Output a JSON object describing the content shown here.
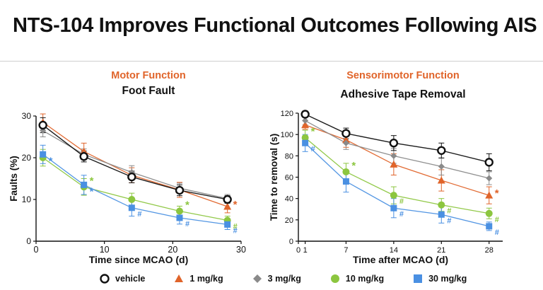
{
  "slide_title": "NTS-104 Improves Functional Outcomes Following AIS",
  "colors": {
    "vehicle": "#111111",
    "dose_1": "#e0642a",
    "dose_3": "#8a8a8a",
    "dose_10": "#8cc63f",
    "dose_30": "#4a90e2",
    "category": "#e0642a"
  },
  "legend": [
    {
      "key": "vehicle",
      "label": "vehicle",
      "marker": "open-circle-icon"
    },
    {
      "key": "dose_1",
      "label": "1 mg/kg",
      "marker": "triangle-icon"
    },
    {
      "key": "dose_3",
      "label": "3 mg/kg",
      "marker": "diamond-icon"
    },
    {
      "key": "dose_10",
      "label": "10 mg/kg",
      "marker": "circle-icon"
    },
    {
      "key": "dose_30",
      "label": "30 mg/kg",
      "marker": "square-icon"
    }
  ],
  "chart_data": [
    {
      "type": "line",
      "category": "Motor Function",
      "title": "Foot Fault",
      "xlabel": "Time since MCAO (d)",
      "ylabel": "Faults (%)",
      "xlim": [
        0,
        30
      ],
      "ylim": [
        0,
        30
      ],
      "xticks": [
        0,
        10,
        20,
        30
      ],
      "yticks": [
        0,
        10,
        20,
        30
      ],
      "x": [
        1,
        7,
        14,
        21,
        28
      ],
      "series": [
        {
          "key": "vehicle",
          "name": "vehicle",
          "marker": "open-circle",
          "values": [
            27.8,
            20.3,
            15.4,
            12.2,
            10.0
          ],
          "errors": [
            1.8,
            1.3,
            1.4,
            1.3,
            0.9
          ],
          "annotations": [
            "",
            "",
            "",
            "",
            ""
          ]
        },
        {
          "key": "dose_1",
          "name": "1 mg/kg",
          "marker": "triangle",
          "values": [
            28.5,
            21.5,
            15.8,
            12.3,
            8.3
          ],
          "errors": [
            2.0,
            2.0,
            1.8,
            1.8,
            1.5
          ],
          "annotations": [
            "",
            "",
            "",
            "",
            "*"
          ]
        },
        {
          "key": "dose_3",
          "name": "3 mg/kg",
          "marker": "diamond",
          "values": [
            26.5,
            20.8,
            16.5,
            12.7,
            10.2
          ],
          "errors": [
            1.5,
            1.3,
            1.6,
            1.2,
            1.0
          ],
          "annotations": [
            "",
            "",
            "",
            "",
            ""
          ]
        },
        {
          "key": "dose_10",
          "name": "10 mg/kg",
          "marker": "circle",
          "values": [
            20.0,
            13.0,
            10.0,
            7.2,
            5.0
          ],
          "errors": [
            2.0,
            2.0,
            1.5,
            1.2,
            1.0
          ],
          "annotations": [
            "",
            "*",
            "",
            "*",
            "#"
          ]
        },
        {
          "key": "dose_30",
          "name": "30 mg/kg",
          "marker": "square",
          "values": [
            20.8,
            13.5,
            8.0,
            5.6,
            4.0
          ],
          "errors": [
            2.2,
            2.3,
            2.0,
            1.5,
            1.2
          ],
          "annotations": [
            "*",
            "*",
            "#",
            "#",
            "#"
          ]
        }
      ]
    },
    {
      "type": "line",
      "category": "Sensorimotor Function",
      "title": "Adhesive Tape Removal",
      "xlabel": "Time after MCAO (d)",
      "ylabel": "Time to removal (s)",
      "xlim": [
        0,
        30
      ],
      "ylim": [
        0,
        120
      ],
      "xticks": [
        0,
        1,
        7,
        14,
        21,
        28
      ],
      "yticks": [
        0,
        20,
        40,
        60,
        80,
        100,
        120
      ],
      "x": [
        1,
        7,
        14,
        21,
        28
      ],
      "series": [
        {
          "key": "vehicle",
          "name": "vehicle",
          "marker": "open-circle",
          "values": [
            119,
            101,
            92,
            85,
            74
          ],
          "errors": [
            3,
            5,
            7,
            7,
            8
          ],
          "annotations": [
            "",
            "",
            "",
            "",
            ""
          ]
        },
        {
          "key": "dose_1",
          "name": "1 mg/kg",
          "marker": "triangle",
          "values": [
            109,
            95,
            72,
            57,
            43
          ],
          "errors": [
            4,
            7,
            10,
            10,
            8
          ],
          "annotations": [
            "",
            "",
            "",
            "",
            "*"
          ]
        },
        {
          "key": "dose_3",
          "name": "3 mg/kg",
          "marker": "diamond",
          "values": [
            113,
            92,
            80,
            70,
            59
          ],
          "errors": [
            4,
            6,
            7,
            8,
            6
          ],
          "annotations": [
            "",
            "",
            "",
            "",
            ""
          ]
        },
        {
          "key": "dose_10",
          "name": "10 mg/kg",
          "marker": "circle",
          "values": [
            97,
            65,
            43,
            34,
            26
          ],
          "errors": [
            7,
            8,
            8,
            6,
            5
          ],
          "annotations": [
            "*",
            "*",
            "#",
            "#",
            "#"
          ]
        },
        {
          "key": "dose_30",
          "name": "30 mg/kg",
          "marker": "square",
          "values": [
            92,
            56,
            31,
            25,
            14
          ],
          "errors": [
            8,
            10,
            9,
            8,
            4
          ],
          "annotations": [
            "#",
            "",
            "#",
            "#",
            "#"
          ]
        }
      ]
    }
  ]
}
